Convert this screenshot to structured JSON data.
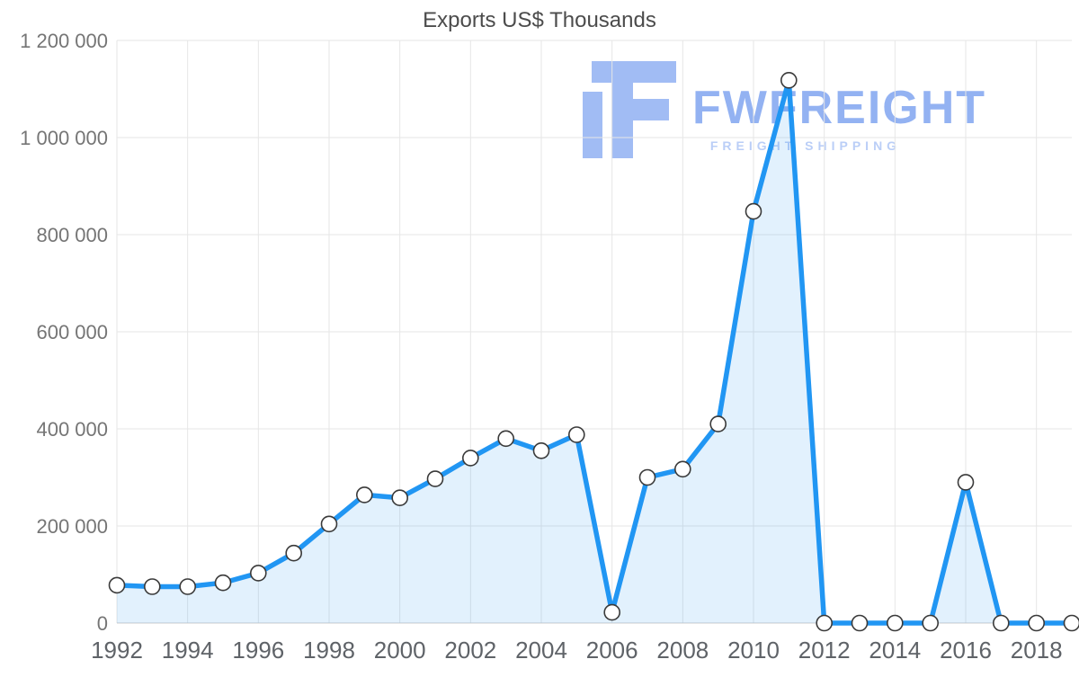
{
  "watermark": {
    "brand": "FWFREIGHT",
    "tagline": "FREIGHT SHIPPING",
    "color": "#2f6be7"
  },
  "chart_data": {
    "type": "area",
    "title": "Exports US$ Thousands",
    "x": [
      1992,
      1993,
      1994,
      1995,
      1996,
      1997,
      1998,
      1999,
      2000,
      2001,
      2002,
      2003,
      2004,
      2005,
      2006,
      2007,
      2008,
      2009,
      2010,
      2011,
      2012,
      2013,
      2014,
      2015,
      2016,
      2017,
      2018,
      2019
    ],
    "series": [
      {
        "name": "Exports US$ Thousands",
        "values": [
          78000,
          75000,
          75000,
          83000,
          103000,
          144000,
          204000,
          264000,
          258000,
          297000,
          340000,
          380000,
          355000,
          388000,
          22000,
          300000,
          317000,
          410000,
          848000,
          1118000,
          0,
          0,
          0,
          0,
          290000,
          0,
          0,
          0
        ]
      }
    ],
    "ylim": [
      0,
      1200000
    ],
    "ytick_labels": [
      "0",
      "200 000",
      "400 000",
      "600 000",
      "800 000",
      "1 000 000",
      "1 200 000"
    ],
    "xtick_labels": [
      "1992",
      "1994",
      "1996",
      "1998",
      "2000",
      "2002",
      "2004",
      "2006",
      "2008",
      "2010",
      "2012",
      "2014",
      "2016",
      "2018"
    ],
    "grid": true,
    "legend": "none",
    "colors": {
      "line": "#2196f3",
      "area": "rgba(33,150,243,0.13)",
      "marker_fill": "#ffffff",
      "marker_stroke": "#3a3a3a",
      "grid": "#e6e6e6",
      "baseline": "#cccccc",
      "y_axis_text": "#757575",
      "x_axis_text": "#5f6368",
      "title_text": "#4c4c4c"
    }
  }
}
